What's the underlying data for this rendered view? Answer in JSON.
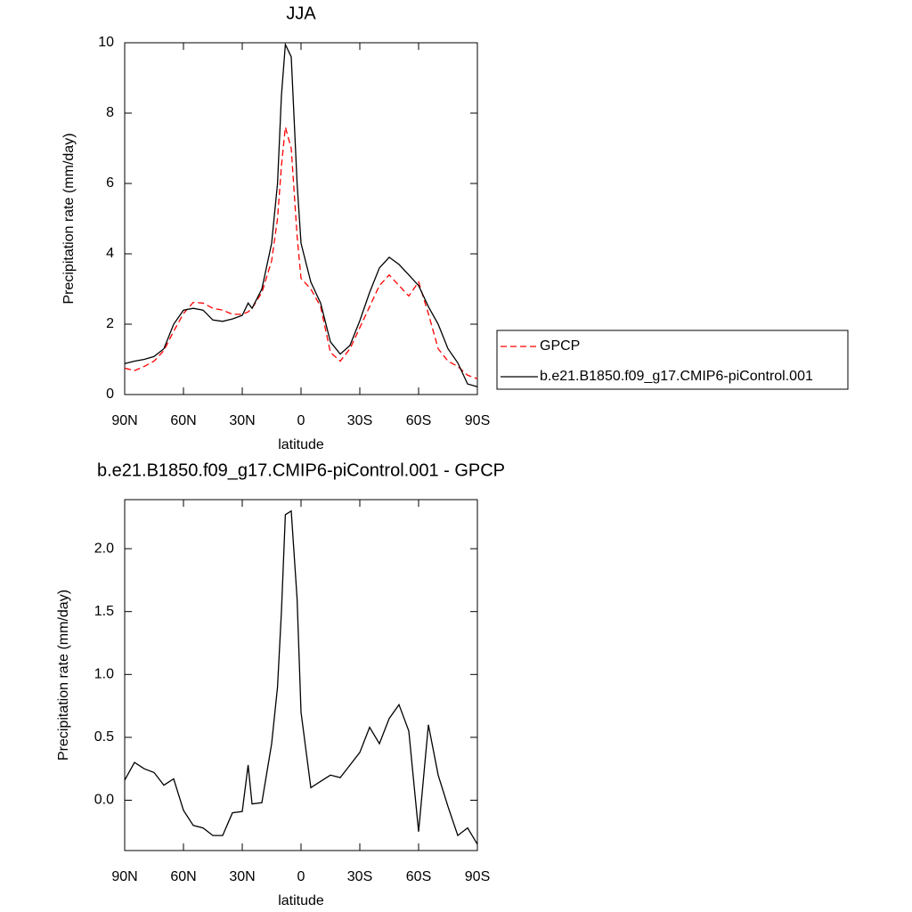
{
  "chart_data": [
    {
      "type": "line",
      "title": "JJA",
      "xlabel": "latitude",
      "ylabel": "Precipitation rate (mm/day)",
      "x": [
        90,
        85,
        80,
        75,
        70,
        65,
        60,
        55,
        50,
        45,
        40,
        35,
        30,
        27,
        25,
        20,
        15,
        12,
        10,
        8,
        5,
        2,
        0,
        -5,
        -10,
        -15,
        -20,
        -25,
        -30,
        -35,
        -40,
        -45,
        -50,
        -55,
        -60,
        -65,
        -70,
        -75,
        -80,
        -85,
        -90
      ],
      "series": [
        {
          "name": "GPCP",
          "color": "#ff0000",
          "dash": "dashed",
          "values": [
            0.75,
            0.68,
            0.8,
            0.95,
            1.25,
            1.8,
            2.3,
            2.62,
            2.6,
            2.45,
            2.4,
            2.28,
            2.28,
            2.35,
            2.45,
            2.9,
            3.8,
            5.0,
            6.5,
            7.6,
            7.0,
            4.5,
            3.3,
            3.0,
            2.5,
            1.2,
            0.95,
            1.3,
            1.9,
            2.5,
            3.1,
            3.4,
            3.1,
            2.8,
            3.2,
            2.3,
            1.3,
            0.95,
            0.8,
            0.55,
            0.45
          ]
        },
        {
          "name": "b.e21.B1850.f09_g17.CMIP6-piControl.001",
          "color": "#000000",
          "dash": "solid",
          "values": [
            0.88,
            0.95,
            1.0,
            1.08,
            1.3,
            2.0,
            2.4,
            2.45,
            2.4,
            2.12,
            2.08,
            2.15,
            2.25,
            2.6,
            2.45,
            3.0,
            4.3,
            6.0,
            8.5,
            9.95,
            9.6,
            6.0,
            4.3,
            3.2,
            2.6,
            1.5,
            1.15,
            1.4,
            2.1,
            2.9,
            3.6,
            3.9,
            3.7,
            3.4,
            3.1,
            2.5,
            2.0,
            1.3,
            0.9,
            0.3,
            0.22
          ]
        }
      ],
      "xlim": [
        90,
        -90
      ],
      "xticks": [
        {
          "value": 90,
          "label": "90N"
        },
        {
          "value": 60,
          "label": "60N"
        },
        {
          "value": 30,
          "label": "30N"
        },
        0,
        {
          "value": -30,
          "label": "30S"
        },
        {
          "value": -60,
          "label": "60S"
        },
        {
          "value": -90,
          "label": "90S"
        }
      ],
      "ylim": [
        0,
        10
      ],
      "yticks": [
        0,
        2,
        4,
        6,
        8,
        10
      ],
      "legend": "right"
    },
    {
      "type": "line",
      "title": "b.e21.B1850.f09_g17.CMIP6-piControl.001 - GPCP",
      "xlabel": "latitude",
      "ylabel": "Precipitation rate (mm/day)",
      "x": [
        90,
        85,
        80,
        75,
        70,
        65,
        60,
        55,
        50,
        45,
        40,
        35,
        30,
        27,
        25,
        20,
        15,
        12,
        10,
        8,
        5,
        2,
        0,
        -5,
        -10,
        -15,
        -20,
        -25,
        -30,
        -35,
        -40,
        -45,
        -50,
        -55,
        -60,
        -65,
        -70,
        -75,
        -80,
        -85,
        -90
      ],
      "series": [
        {
          "color": "#000000",
          "dash": "solid",
          "values": [
            0.16,
            0.3,
            0.25,
            0.22,
            0.12,
            0.17,
            -0.08,
            -0.2,
            -0.22,
            -0.28,
            -0.28,
            -0.1,
            -0.09,
            0.28,
            -0.03,
            -0.02,
            0.45,
            0.9,
            1.5,
            2.27,
            2.3,
            1.6,
            0.7,
            0.1,
            0.15,
            0.2,
            0.18,
            0.28,
            0.38,
            0.58,
            0.45,
            0.65,
            0.76,
            0.55,
            -0.25,
            0.6,
            0.2,
            -0.05,
            -0.28,
            -0.22,
            -0.35
          ]
        }
      ],
      "xlim": [
        90,
        -90
      ],
      "xticks": [
        {
          "value": 90,
          "label": "90N"
        },
        {
          "value": 60,
          "label": "60N"
        },
        {
          "value": 30,
          "label": "30N"
        },
        0,
        {
          "value": -30,
          "label": "30S"
        },
        {
          "value": -60,
          "label": "60S"
        },
        {
          "value": -90,
          "label": "90S"
        }
      ],
      "ylim": [
        -0.4,
        2.39
      ],
      "yticks": [
        {
          "value": 0,
          "label": "0.0"
        },
        0.5,
        {
          "value": 1,
          "label": "1.0"
        },
        1.5,
        {
          "value": 2,
          "label": "2.0"
        }
      ]
    }
  ]
}
